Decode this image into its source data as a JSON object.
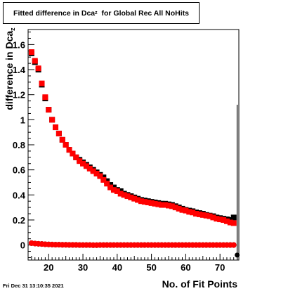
{
  "title": {
    "prefix": "Fitted difference in Dca",
    "sub": "z",
    "suffix": "  for Global Rec All NoHits"
  },
  "footer": {
    "datestamp": "Fri Dec 31 13:10:35 2021"
  },
  "chart_data": {
    "type": "scatter",
    "title": "Fitted difference in Dca_z  for Global Rec All NoHits",
    "xlabel": "No. of Fit Points",
    "ylabel": "difference in Dca_z",
    "xlim": [
      14,
      75.5
    ],
    "ylim": [
      -0.12,
      1.72
    ],
    "x_ticks": [
      "20",
      "30",
      "40",
      "50",
      "60",
      "70"
    ],
    "y_ticks": [
      "0",
      "0.2",
      "0.4",
      "0.6",
      "0.8",
      "1",
      "1.2",
      "1.4",
      "1.6"
    ],
    "x_tick_values": [
      20,
      30,
      40,
      50,
      60,
      70
    ],
    "y_tick_values": [
      0,
      0.2,
      0.4,
      0.6,
      0.8,
      1.0,
      1.2,
      1.4,
      1.6
    ],
    "grid": false,
    "legend": "none",
    "colors": {
      "red": "#ff0000",
      "black": "#000000"
    },
    "series": [
      {
        "color": "#000000",
        "marker": "square",
        "x": [
          15,
          16,
          17,
          18,
          19,
          20,
          21,
          22,
          23,
          24,
          25,
          26,
          27,
          28,
          29,
          30,
          31,
          32,
          33,
          34,
          35,
          36,
          37,
          38,
          39,
          40,
          41,
          42,
          43,
          44,
          45,
          46,
          47,
          48,
          49,
          50,
          51,
          52,
          53,
          54,
          55,
          56,
          57,
          58,
          59,
          60,
          61,
          62,
          63,
          64,
          65,
          66,
          67,
          68,
          69,
          70,
          71,
          72,
          73,
          74
        ],
        "y": [
          1.53,
          1.46,
          1.4,
          1.28,
          1.17,
          1.08,
          1.0,
          0.94,
          0.89,
          0.84,
          0.8,
          0.76,
          0.73,
          0.7,
          0.68,
          0.66,
          0.64,
          0.62,
          0.6,
          0.58,
          0.56,
          0.54,
          0.51,
          0.48,
          0.46,
          0.44,
          0.43,
          0.41,
          0.4,
          0.39,
          0.38,
          0.37,
          0.36,
          0.355,
          0.35,
          0.345,
          0.34,
          0.335,
          0.33,
          0.33,
          0.325,
          0.32,
          0.31,
          0.3,
          0.29,
          0.28,
          0.275,
          0.27,
          0.26,
          0.255,
          0.25,
          0.24,
          0.235,
          0.23,
          0.22,
          0.215,
          0.21,
          0.205,
          0.2,
          0.22
        ]
      },
      {
        "color": "#ff0000",
        "marker": "square",
        "x": [
          15,
          16,
          17,
          18,
          19,
          20,
          21,
          22,
          23,
          24,
          25,
          26,
          27,
          28,
          29,
          30,
          31,
          32,
          33,
          34,
          35,
          36,
          37,
          38,
          39,
          40,
          41,
          42,
          43,
          44,
          45,
          46,
          47,
          48,
          49,
          50,
          51,
          52,
          53,
          54,
          55,
          56,
          57,
          58,
          59,
          60,
          61,
          62,
          63,
          64,
          65,
          66,
          67,
          68,
          69,
          70,
          71,
          72,
          73,
          74
        ],
        "y": [
          1.54,
          1.47,
          1.41,
          1.29,
          1.18,
          1.08,
          1.0,
          0.94,
          0.89,
          0.84,
          0.8,
          0.76,
          0.73,
          0.7,
          0.67,
          0.65,
          0.63,
          0.61,
          0.59,
          0.57,
          0.55,
          0.52,
          0.49,
          0.46,
          0.44,
          0.43,
          0.41,
          0.4,
          0.39,
          0.38,
          0.37,
          0.36,
          0.35,
          0.345,
          0.34,
          0.335,
          0.33,
          0.325,
          0.32,
          0.32,
          0.315,
          0.31,
          0.3,
          0.29,
          0.28,
          0.275,
          0.265,
          0.26,
          0.25,
          0.245,
          0.24,
          0.235,
          0.23,
          0.22,
          0.21,
          0.205,
          0.2,
          0.19,
          0.18,
          0.175
        ]
      },
      {
        "color": "#000000",
        "marker": "circle",
        "x": [
          15,
          16,
          17,
          18,
          19,
          20,
          21,
          22,
          23,
          24,
          25,
          26,
          27,
          28,
          29,
          30,
          31,
          32,
          33,
          34,
          35,
          36,
          37,
          38,
          39,
          40,
          41,
          42,
          43,
          44,
          45,
          46,
          47,
          48,
          49,
          50,
          51,
          52,
          53,
          54,
          55,
          56,
          57,
          58,
          59,
          60,
          61,
          62,
          63,
          64,
          65,
          66,
          67,
          68,
          69,
          70,
          71,
          72,
          73,
          74
        ],
        "y": [
          0.015,
          0.012,
          0.01,
          0.008,
          0.006,
          0.005,
          0.004,
          0.003,
          0.003,
          0.002,
          0.002,
          0.001,
          0.001,
          0.001,
          0.0,
          0.0,
          0.0,
          0.0,
          -0.001,
          -0.001,
          0.0,
          0.0,
          0.0,
          0.0,
          0.0,
          0.0,
          0.0,
          0.0,
          0.0,
          0.0,
          0.0,
          0.0,
          0.0,
          0.0,
          0.0,
          0.0,
          0.0,
          0.0,
          0.0,
          0.0,
          0.0,
          0.0,
          0.0,
          0.0,
          0.0,
          0.0,
          0.0,
          0.0,
          0.0,
          0.0,
          0.0,
          0.0,
          0.0,
          0.0,
          0.0,
          0.0,
          0.0,
          0.0,
          0.0,
          0.0
        ]
      },
      {
        "color": "#ff0000",
        "marker": "circle",
        "x": [
          15,
          16,
          17,
          18,
          19,
          20,
          21,
          22,
          23,
          24,
          25,
          26,
          27,
          28,
          29,
          30,
          31,
          32,
          33,
          34,
          35,
          36,
          37,
          38,
          39,
          40,
          41,
          42,
          43,
          44,
          45,
          46,
          47,
          48,
          49,
          50,
          51,
          52,
          53,
          54,
          55,
          56,
          57,
          58,
          59,
          60,
          61,
          62,
          63,
          64,
          65,
          66,
          67,
          68,
          69,
          70,
          71,
          72,
          73,
          74
        ],
        "y": [
          0.015,
          0.012,
          0.01,
          0.008,
          0.006,
          0.005,
          0.004,
          0.003,
          0.003,
          0.002,
          0.002,
          0.001,
          0.001,
          0.001,
          0.0,
          0.0,
          0.0,
          0.0,
          -0.001,
          -0.001,
          0.0,
          0.0,
          0.0,
          0.0,
          0.0,
          0.0,
          0.0,
          0.0,
          0.0,
          0.0,
          0.0,
          0.0,
          0.0,
          0.0,
          0.0,
          0.0,
          0.0,
          0.0,
          0.0,
          0.0,
          0.0,
          0.0,
          0.0,
          0.0,
          0.0,
          0.0,
          0.0,
          0.0,
          0.0,
          0.0,
          0.0,
          0.0,
          0.0,
          0.0,
          0.0,
          0.0,
          0.0,
          0.0,
          0.0,
          0.0
        ]
      }
    ],
    "outlier": {
      "x": 75,
      "y": -0.08,
      "error_top": 1.12,
      "color": "#000000"
    }
  },
  "axes_text": {
    "xlabel": "No. of Fit Points",
    "ylabel_prefix": "difference in Dca",
    "ylabel_sub": "z"
  }
}
